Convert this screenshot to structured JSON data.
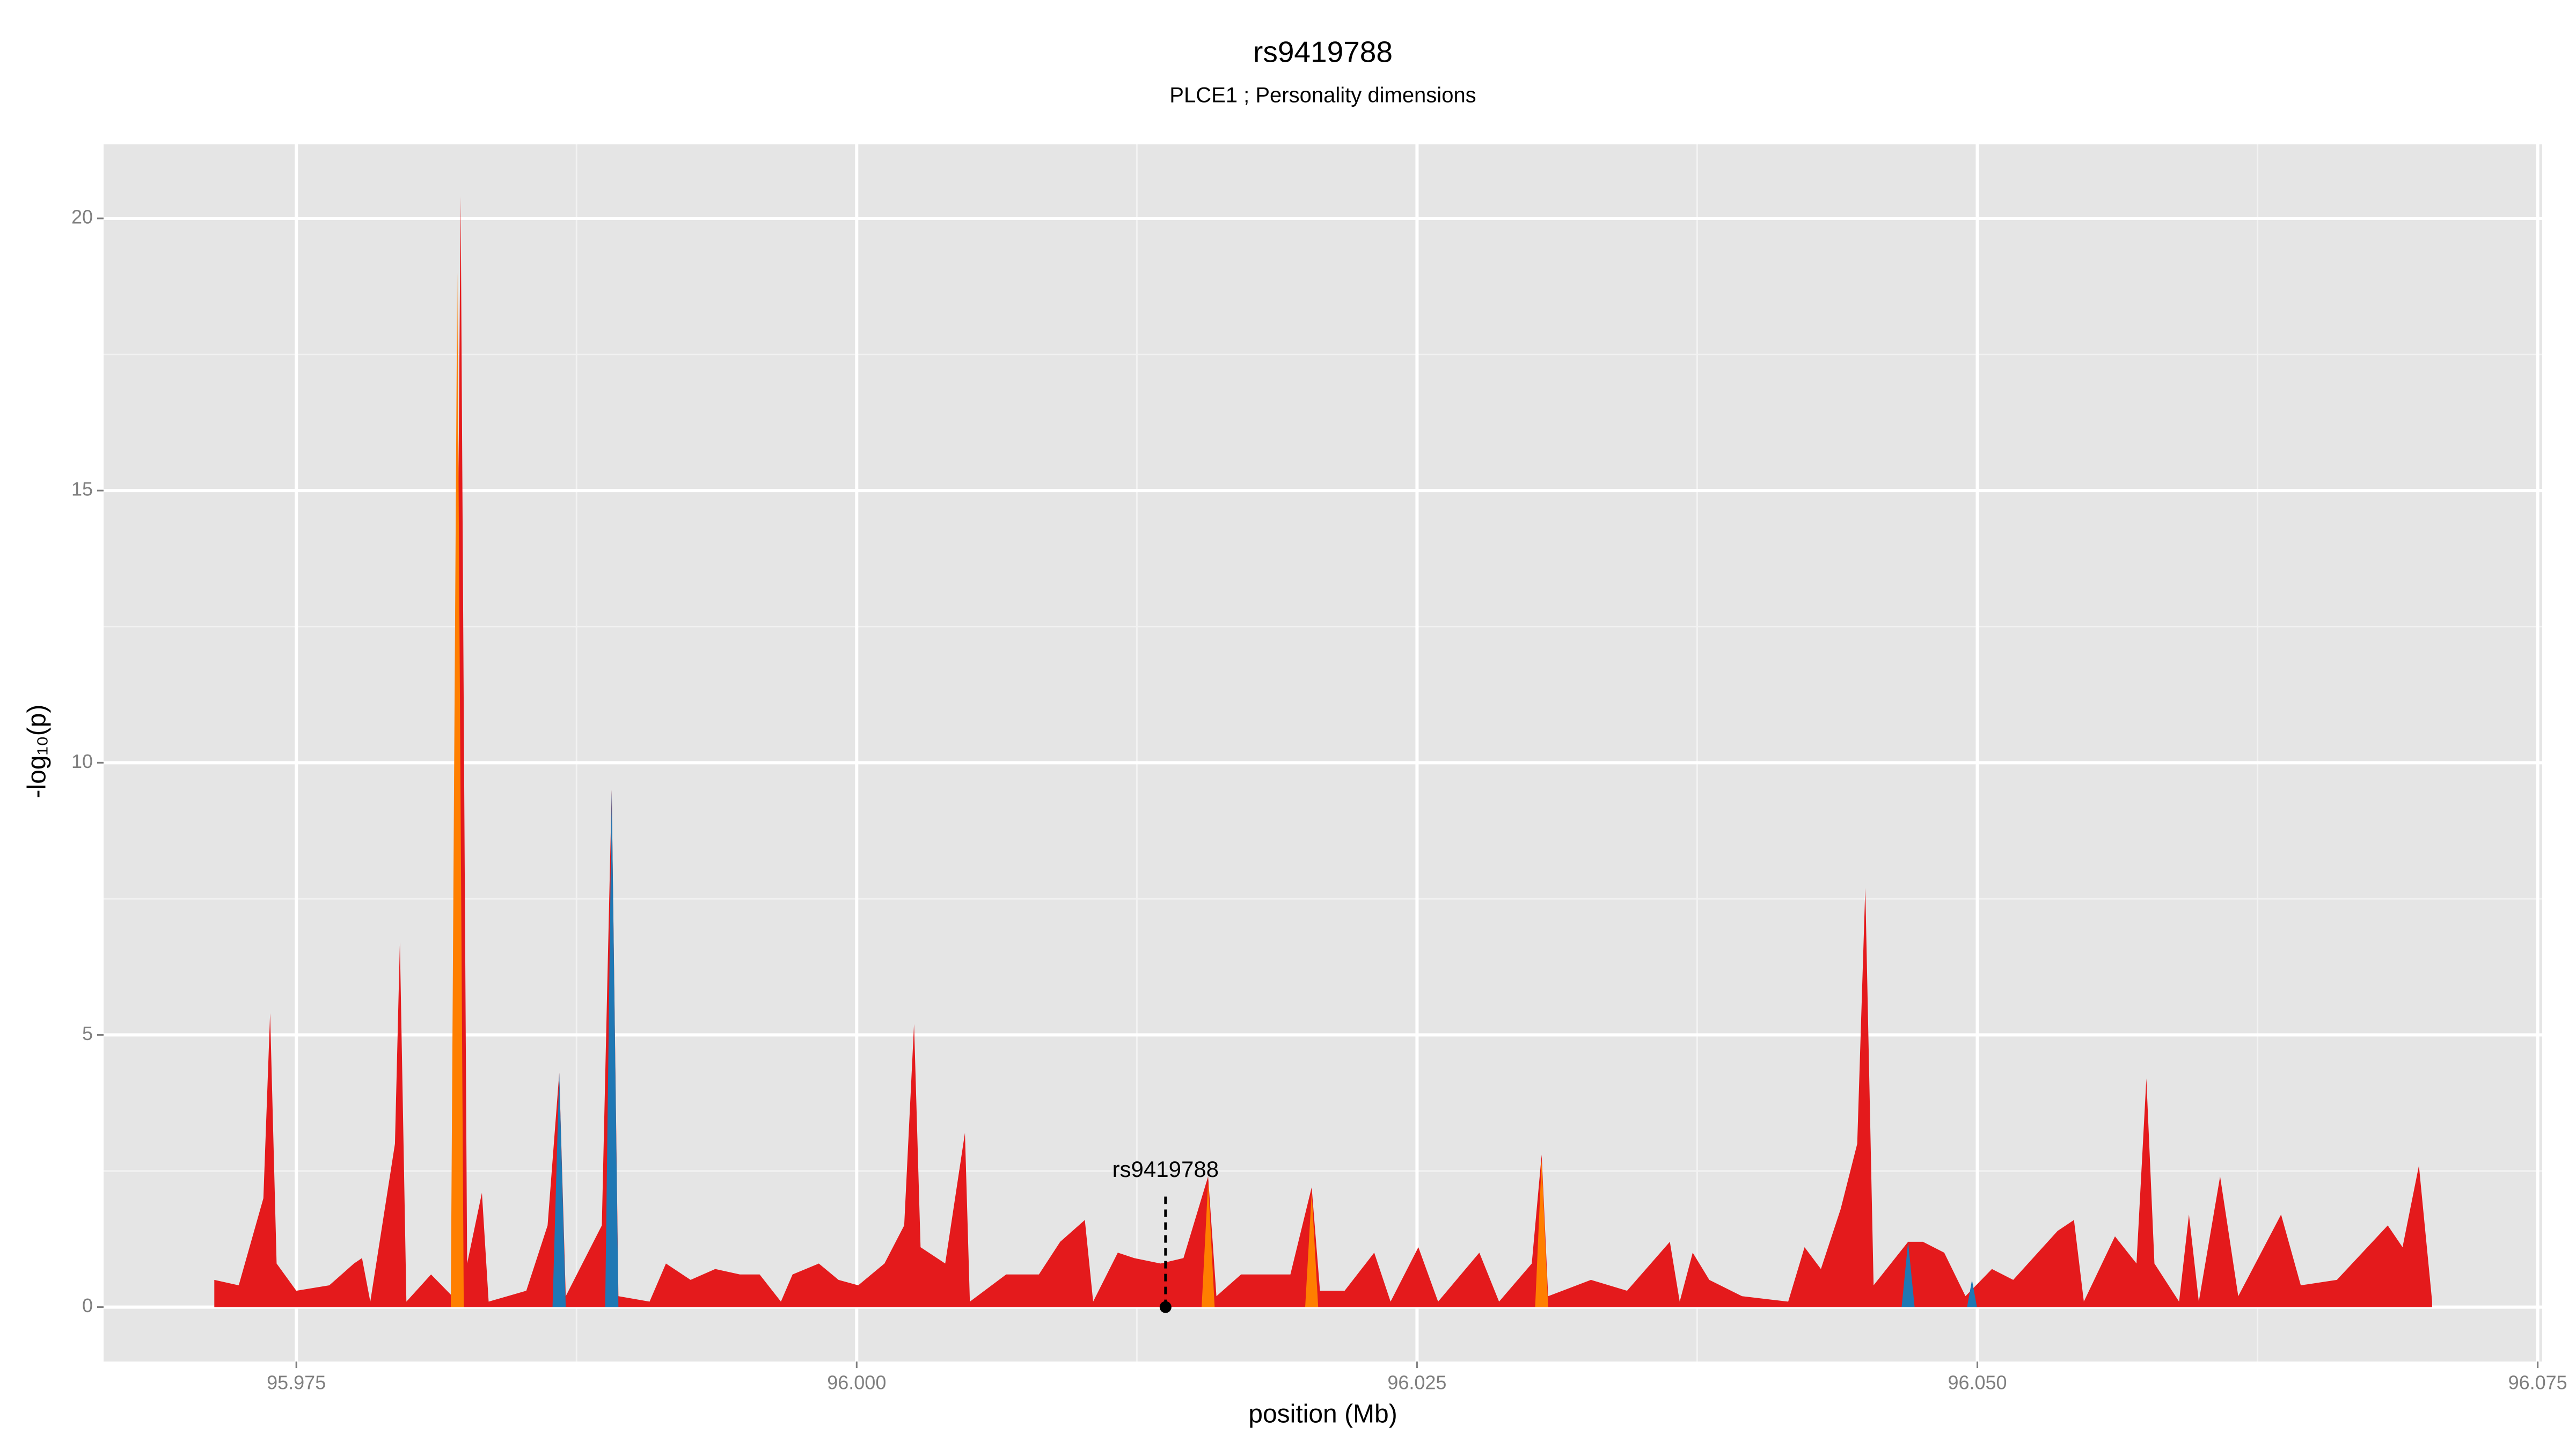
{
  "chart_data": {
    "type": "area",
    "title": "rs9419788",
    "subtitle": "PLCE1 ; Personality dimensions",
    "xlabel": "position (Mb)",
    "ylabel": "-log₁₀(p)",
    "xlim": [
      95.9664,
      96.0752
    ],
    "ylim": [
      -1.0,
      21.36
    ],
    "xticks": [
      95.975,
      {
        "value": 96,
        "label": "96.000"
      },
      96.025,
      {
        "value": 96.05,
        "label": "96.050"
      },
      96.075
    ],
    "yticks": [
      0,
      5,
      10,
      15,
      20
    ],
    "grid": true,
    "annotation": {
      "text": "rs9419788",
      "x": 96.01378,
      "y": 0
    },
    "series": [
      {
        "color": "#e41a1c",
        "x": [
          95.97134,
          95.97243,
          95.97353,
          95.97383,
          95.97412,
          95.975,
          95.97647,
          95.97757,
          95.97793,
          95.9783,
          95.9794,
          95.97962,
          95.97991,
          95.98101,
          95.98196,
          95.98233,
          95.98262,
          95.98328,
          95.98358,
          95.98526,
          95.98621,
          95.98673,
          95.98702,
          95.98863,
          95.98907,
          95.98937,
          95.99076,
          95.99149,
          95.99259,
          95.99369,
          95.99479,
          95.99567,
          95.99662,
          95.99714,
          95.99831,
          95.99919,
          96.00007,
          96.00124,
          96.00212,
          96.00256,
          96.00285,
          96.00395,
          96.00483,
          96.00505,
          96.00667,
          96.00813,
          96.00908,
          96.01018,
          96.01055,
          96.01165,
          96.01238,
          96.01356,
          96.01458,
          96.01568,
          96.01605,
          96.01715,
          96.0181,
          96.01935,
          96.0203,
          96.02067,
          96.02177,
          96.02309,
          96.02382,
          96.02506,
          96.02594,
          96.02778,
          96.02866,
          96.03012,
          96.03056,
          96.03085,
          96.03276,
          96.03437,
          96.03628,
          96.03672,
          96.0373,
          96.03804,
          96.0395,
          96.04156,
          96.04229,
          96.04302,
          96.0439,
          96.04464,
          96.045,
          96.04537,
          96.04691,
          96.04757,
          96.04852,
          96.04947,
          96.05065,
          96.0516,
          96.05358,
          96.05431,
          96.05475,
          96.05614,
          96.0571,
          96.05754,
          96.0579,
          96.059,
          96.05944,
          96.05988,
          96.06083,
          96.06164,
          96.06355,
          96.06443,
          96.06604,
          96.06831,
          96.06897,
          96.0697,
          96.07029
        ],
        "values": [
          0.5,
          0.4,
          2,
          5.4,
          0.8,
          0.3,
          0.4,
          0.8,
          0.9,
          0.1,
          3,
          6.7,
          0.1,
          0.6,
          0.2,
          20.4,
          0.8,
          2.1,
          0.1,
          0.3,
          1.5,
          4.3,
          0.2,
          1.5,
          9.5,
          0.2,
          0.1,
          0.8,
          0.5,
          0.7,
          0.6,
          0.6,
          0.1,
          0.6,
          0.8,
          0.5,
          0.4,
          0.8,
          1.5,
          5.2,
          1.1,
          0.8,
          3.2,
          0.1,
          0.6,
          0.6,
          1.2,
          1.6,
          0.1,
          1.0,
          0.9,
          0.8,
          0.9,
          2.4,
          0.2,
          0.6,
          0.6,
          0.6,
          2.2,
          0.3,
          0.3,
          1.0,
          0.1,
          1.1,
          0.1,
          1.0,
          0.1,
          0.8,
          2.8,
          0.2,
          0.5,
          0.3,
          1.2,
          0.1,
          1.0,
          0.5,
          0.2,
          0.1,
          1.1,
          0.7,
          1.8,
          3,
          7.7,
          0.4,
          1.2,
          1.2,
          1.0,
          0.2,
          0.7,
          0.5,
          1.4,
          1.6,
          0.1,
          1.3,
          0.8,
          4.2,
          0.8,
          0.1,
          1.7,
          0.1,
          2.4,
          0.2,
          1.7,
          0.4,
          0.5,
          1.5,
          1.1,
          2.6,
          0.1
        ]
      },
      {
        "color": "#ff7f00",
        "x": [
          95.98189,
          95.98218,
          95.98247,
          96.0,
          96.01539,
          96.01568,
          96.01597,
          96.02,
          96.02001,
          96.0203,
          96.02059,
          96.025,
          96.03027,
          96.03056,
          96.03085
        ],
        "values": [
          0,
          19,
          0,
          null,
          0,
          2.3,
          0,
          null,
          0,
          2.1,
          0,
          null,
          0,
          2.7,
          0
        ]
      },
      {
        "color": "#1f78b4",
        "x": [
          95.98643,
          95.98673,
          95.98702,
          95.988,
          95.98878,
          95.98907,
          95.98937,
          96.04,
          96.04662,
          96.04691,
          96.0472,
          96.048,
          96.04954,
          96.04976,
          96.04998
        ],
        "values": [
          0,
          4.3,
          0,
          null,
          0,
          9.5,
          0,
          null,
          0,
          1.2,
          0,
          null,
          0,
          0.5,
          0
        ]
      }
    ]
  }
}
